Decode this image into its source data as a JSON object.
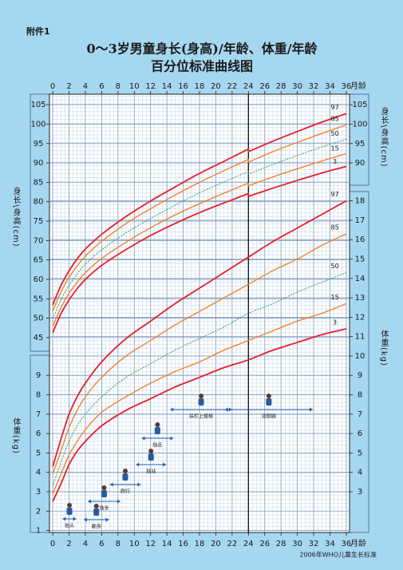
{
  "header": "附件1",
  "title": [
    "0～3岁男童身长(身高)/年龄、体重/年龄",
    "百分位标准曲线图"
  ],
  "footer": "2006年WHO儿童生长标准",
  "chart_data": [
    {
      "type": "line",
      "y_label": "身长\\身高(cm)",
      "x_label": "月龄",
      "x": [
        0,
        1,
        2,
        3,
        4,
        6,
        9,
        12,
        15,
        18,
        21,
        24,
        24,
        27,
        30,
        33,
        36
      ],
      "xlim": [
        -0.4,
        36.4
      ],
      "xticks": [
        0,
        2,
        4,
        6,
        8,
        10,
        12,
        14,
        16,
        18,
        20,
        22,
        24,
        26,
        28,
        30,
        32,
        34,
        36
      ],
      "ylim": [
        -5.2,
        107.7
      ],
      "yticks": [
        45,
        50,
        55,
        60,
        65,
        70,
        75,
        80,
        85,
        90,
        95,
        100,
        105
      ],
      "y2lim": [
        -5.2,
        107.7
      ],
      "y2ticks": [
        90,
        95,
        100,
        105
      ],
      "grid": true,
      "series": [
        {
          "name": "97",
          "color": "#e3202a",
          "values": [
            53.4,
            58.4,
            62.2,
            65.3,
            67.8,
            71.6,
            76.2,
            80.2,
            83.8,
            87.3,
            90.4,
            93.6,
            92.9,
            95.6,
            98.1,
            100.5,
            102.7
          ]
        },
        {
          "name": "85",
          "color": "#f07d1e",
          "values": [
            51.8,
            56.7,
            60.5,
            63.5,
            66.0,
            69.8,
            74.4,
            78.2,
            81.7,
            85.0,
            88.0,
            90.9,
            90.2,
            92.9,
            95.3,
            97.6,
            99.8
          ]
        },
        {
          "name": "50",
          "color": "#2f9e57",
          "values": [
            49.9,
            54.7,
            58.4,
            61.4,
            63.9,
            67.6,
            72.0,
            75.7,
            79.1,
            82.3,
            85.1,
            87.8,
            87.1,
            89.6,
            91.9,
            94.1,
            96.1
          ]
        },
        {
          "name": "15",
          "color": "#f07d1e",
          "values": [
            47.9,
            52.7,
            56.4,
            59.3,
            61.7,
            65.4,
            69.6,
            73.3,
            76.6,
            79.5,
            82.2,
            84.8,
            84.1,
            86.4,
            88.5,
            90.5,
            92.4
          ]
        },
        {
          "name": "3",
          "color": "#e3202a",
          "values": [
            46.3,
            51.1,
            54.7,
            57.6,
            60.0,
            63.6,
            67.7,
            71.3,
            74.4,
            77.2,
            79.7,
            82.1,
            81.4,
            83.5,
            85.5,
            87.4,
            89.1
          ]
        }
      ]
    },
    {
      "type": "line",
      "y_label": "体重(kg)",
      "x_label": "月龄",
      "x": [
        0,
        1,
        2,
        3,
        4,
        6,
        9,
        12,
        15,
        18,
        21,
        24,
        27,
        30,
        33,
        36
      ],
      "xlim": [
        -0.4,
        36.4
      ],
      "xticks": [
        0,
        2,
        4,
        6,
        8,
        10,
        12,
        14,
        16,
        18,
        20,
        22,
        24,
        26,
        28,
        30,
        32,
        34,
        36
      ],
      "ylim": [
        0.9,
        23.5
      ],
      "yticks": [
        1,
        2,
        3,
        4,
        5,
        6,
        7,
        8,
        9
      ],
      "y2lim": [
        0.9,
        23.5
      ],
      "y2ticks": [
        3,
        4,
        5,
        6,
        7,
        8,
        9,
        10,
        11,
        12,
        13,
        14,
        15,
        16,
        17,
        18
      ],
      "grid": true,
      "series": [
        {
          "name": "97",
          "color": "#e3202a",
          "values": [
            4.3,
            5.7,
            7.0,
            7.9,
            8.6,
            9.7,
            10.9,
            11.8,
            12.7,
            13.5,
            14.3,
            15.1,
            15.9,
            16.6,
            17.3,
            18.0
          ]
        },
        {
          "name": "85",
          "color": "#f07d1e",
          "values": [
            3.9,
            5.1,
            6.3,
            7.2,
            7.9,
            8.9,
            10.0,
            10.8,
            11.6,
            12.3,
            13.0,
            13.7,
            14.4,
            15.0,
            15.7,
            16.3
          ]
        },
        {
          "name": "50",
          "color": "#2f9e57",
          "values": [
            3.3,
            4.5,
            5.6,
            6.4,
            7.0,
            7.9,
            8.9,
            9.6,
            10.3,
            10.9,
            11.5,
            12.2,
            12.7,
            13.3,
            13.8,
            14.3
          ]
        },
        {
          "name": "15",
          "color": "#f07d1e",
          "values": [
            2.9,
            3.9,
            4.9,
            5.6,
            6.2,
            7.1,
            7.9,
            8.6,
            9.2,
            9.7,
            10.3,
            10.8,
            11.3,
            11.8,
            12.2,
            12.7
          ]
        },
        {
          "name": "3",
          "color": "#e3202a",
          "values": [
            2.5,
            3.4,
            4.4,
            5.1,
            5.6,
            6.4,
            7.2,
            7.8,
            8.4,
            8.9,
            9.4,
            9.8,
            10.3,
            10.7,
            11.1,
            11.4
          ]
        }
      ]
    }
  ],
  "milestones": [
    {
      "label": "抬头",
      "range": [
        1.2,
        2.9
      ]
    },
    {
      "label": "翻身",
      "range": [
        3.8,
        6.9
      ]
    },
    {
      "label": "独坐",
      "range": [
        4.3,
        8.3
      ]
    },
    {
      "label": "爬行",
      "range": [
        7.0,
        10.8
      ]
    },
    {
      "label": "独站",
      "range": [
        10.2,
        13.9
      ]
    },
    {
      "label": "独走",
      "range": [
        10.9,
        14.8
      ]
    },
    {
      "label": "扶栏上楼梯",
      "range": [
        14.4,
        22.0
      ]
    },
    {
      "label": "双脚跳",
      "range": [
        21.1,
        31.9
      ]
    }
  ]
}
